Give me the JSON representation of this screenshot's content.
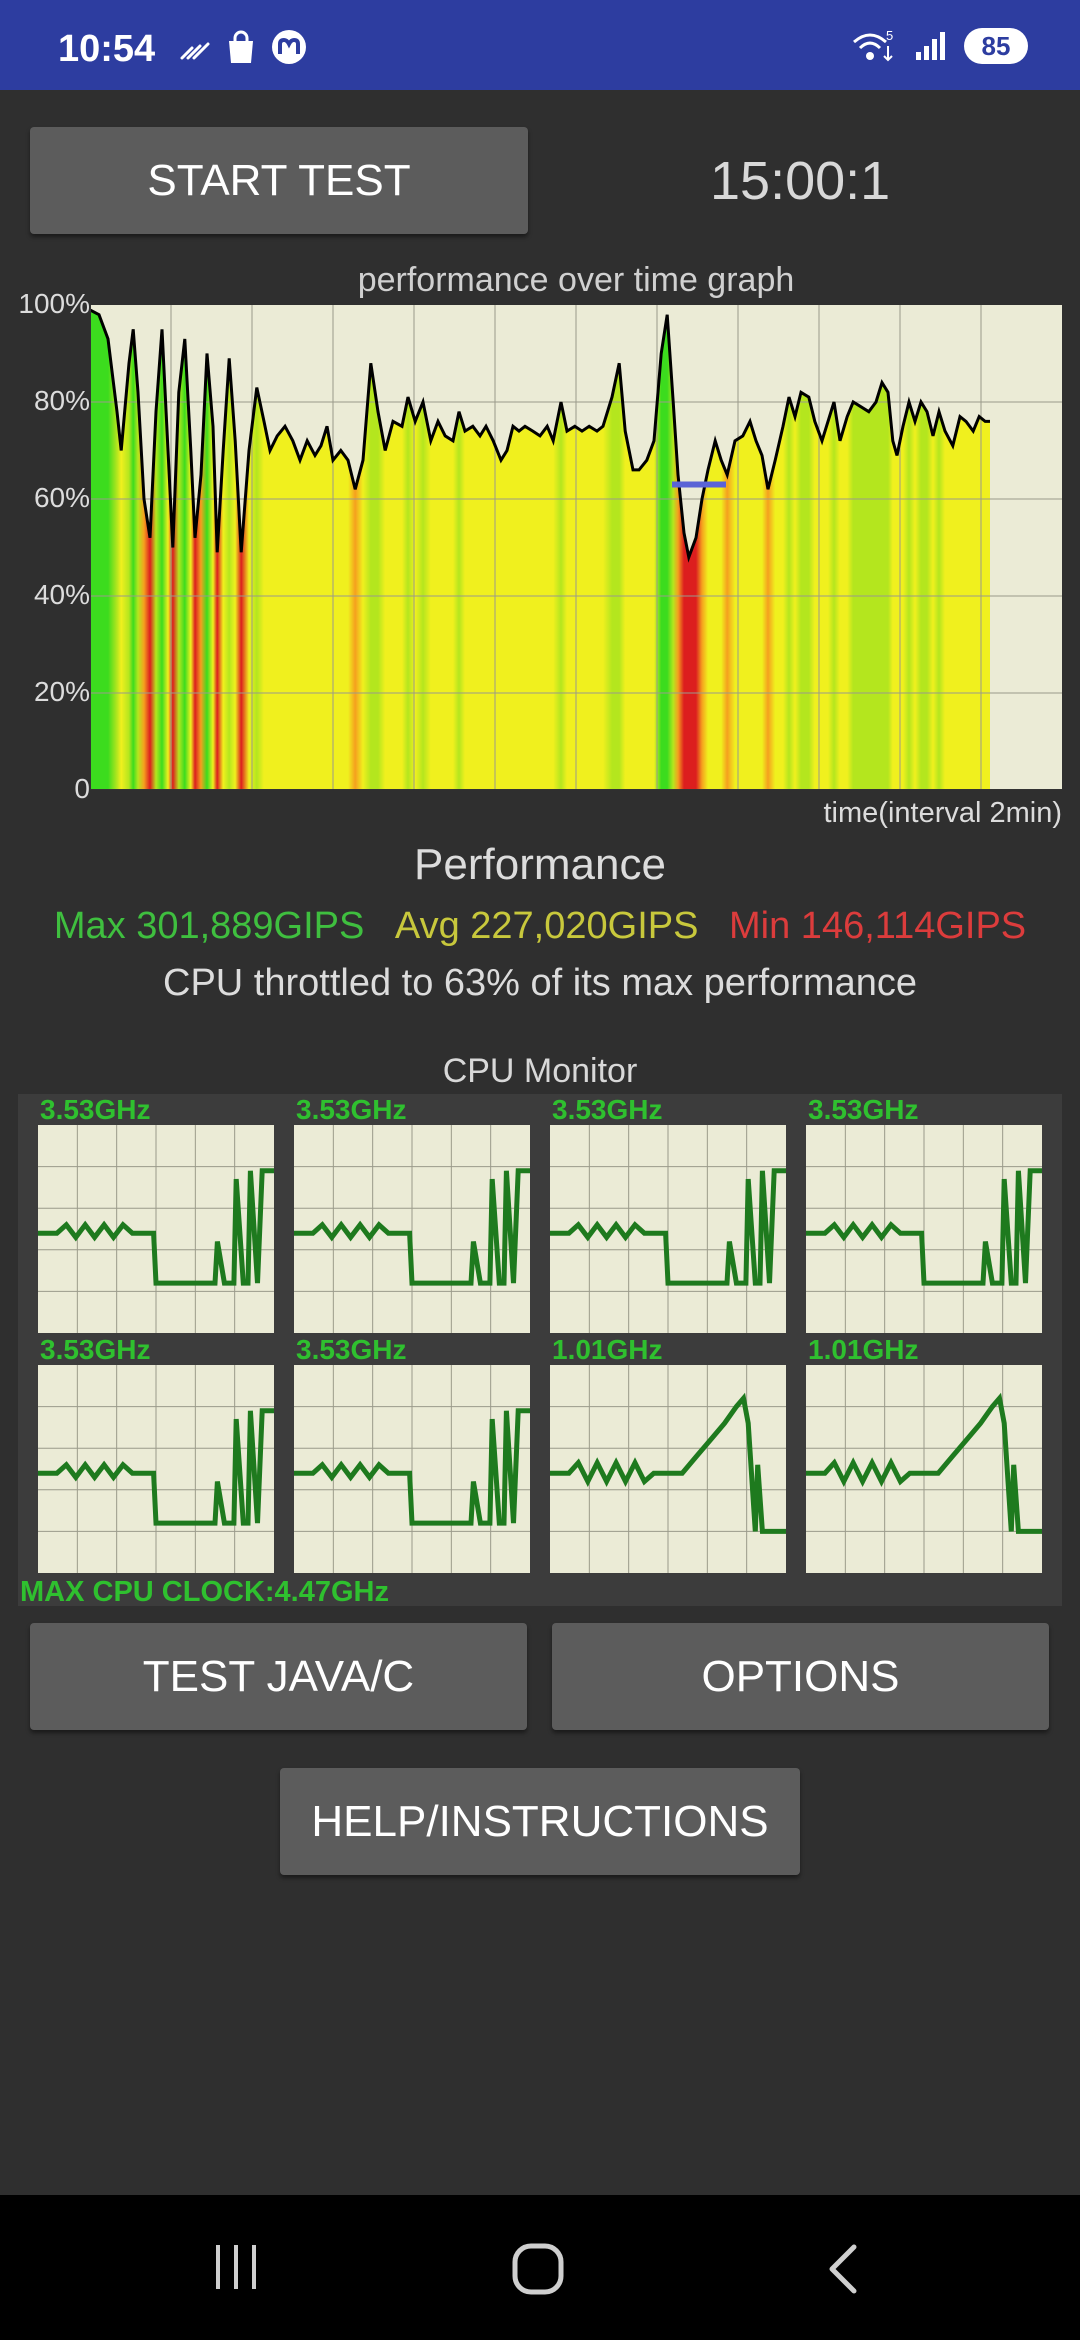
{
  "status_bar": {
    "time": "10:54",
    "icons_left": [
      "wifi-calling-icon",
      "shopping-bag-icon",
      "messenger-app-icon"
    ],
    "icons_right": [
      "wifi-5-icon",
      "signal-icon"
    ],
    "battery": "85"
  },
  "controls": {
    "start_test_label": "START TEST",
    "timer": "15:00:1"
  },
  "chart_data": {
    "type": "area",
    "title": "performance over time graph",
    "xlabel": "time(interval 2min)",
    "ylabel": "",
    "y_ticks": [
      "100%",
      "80%",
      "60%",
      "40%",
      "20%",
      "0"
    ],
    "ylim": [
      0,
      100
    ],
    "x_range": [
      0,
      15
    ],
    "grid": true,
    "series": [
      {
        "values": [
          [
            0.0,
            99
          ],
          [
            0.15,
            98
          ],
          [
            0.3,
            93
          ],
          [
            0.45,
            78
          ],
          [
            0.52,
            70
          ],
          [
            0.65,
            88
          ],
          [
            0.72,
            95
          ],
          [
            0.8,
            82
          ],
          [
            0.9,
            60
          ],
          [
            1.0,
            52
          ],
          [
            1.1,
            78
          ],
          [
            1.2,
            95
          ],
          [
            1.3,
            70
          ],
          [
            1.38,
            50
          ],
          [
            1.48,
            82
          ],
          [
            1.58,
            93
          ],
          [
            1.68,
            70
          ],
          [
            1.75,
            52
          ],
          [
            1.85,
            65
          ],
          [
            1.95,
            90
          ],
          [
            2.05,
            75
          ],
          [
            2.12,
            49
          ],
          [
            2.22,
            70
          ],
          [
            2.32,
            89
          ],
          [
            2.42,
            72
          ],
          [
            2.52,
            49
          ],
          [
            2.65,
            70
          ],
          [
            2.78,
            83
          ],
          [
            2.9,
            76
          ],
          [
            3.0,
            70
          ],
          [
            3.12,
            73
          ],
          [
            3.25,
            75
          ],
          [
            3.38,
            72
          ],
          [
            3.5,
            68
          ],
          [
            3.62,
            72
          ],
          [
            3.75,
            69
          ],
          [
            3.85,
            71
          ],
          [
            3.95,
            75
          ],
          [
            4.05,
            68
          ],
          [
            4.18,
            70
          ],
          [
            4.3,
            68
          ],
          [
            4.42,
            62
          ],
          [
            4.55,
            68
          ],
          [
            4.68,
            88
          ],
          [
            4.8,
            78
          ],
          [
            4.92,
            70
          ],
          [
            5.05,
            76
          ],
          [
            5.2,
            75
          ],
          [
            5.3,
            81
          ],
          [
            5.42,
            76
          ],
          [
            5.55,
            80
          ],
          [
            5.68,
            72
          ],
          [
            5.8,
            76
          ],
          [
            5.92,
            73
          ],
          [
            6.05,
            72
          ],
          [
            6.15,
            78
          ],
          [
            6.25,
            74
          ],
          [
            6.38,
            75
          ],
          [
            6.5,
            73
          ],
          [
            6.6,
            75
          ],
          [
            6.72,
            72
          ],
          [
            6.85,
            68
          ],
          [
            6.95,
            70
          ],
          [
            7.05,
            75
          ],
          [
            7.15,
            74
          ],
          [
            7.25,
            75
          ],
          [
            7.38,
            74
          ],
          [
            7.5,
            73
          ],
          [
            7.62,
            75
          ],
          [
            7.72,
            72
          ],
          [
            7.85,
            80
          ],
          [
            7.95,
            74
          ],
          [
            8.08,
            75
          ],
          [
            8.2,
            74
          ],
          [
            8.32,
            75
          ],
          [
            8.45,
            74
          ],
          [
            8.55,
            75
          ],
          [
            8.7,
            81
          ],
          [
            8.82,
            88
          ],
          [
            8.92,
            74
          ],
          [
            9.05,
            66
          ],
          [
            9.15,
            66
          ],
          [
            9.28,
            68
          ],
          [
            9.4,
            72
          ],
          [
            9.52,
            90
          ],
          [
            9.62,
            98
          ],
          [
            9.72,
            80
          ],
          [
            9.8,
            65
          ],
          [
            9.9,
            53
          ],
          [
            9.98,
            48
          ],
          [
            10.1,
            52
          ],
          [
            10.2,
            60
          ],
          [
            10.3,
            66
          ],
          [
            10.42,
            72
          ],
          [
            10.52,
            68
          ],
          [
            10.62,
            65
          ],
          [
            10.75,
            72
          ],
          [
            10.88,
            73
          ],
          [
            11.0,
            76
          ],
          [
            11.1,
            72
          ],
          [
            11.2,
            69
          ],
          [
            11.3,
            62
          ],
          [
            11.42,
            68
          ],
          [
            11.55,
            75
          ],
          [
            11.65,
            81
          ],
          [
            11.75,
            77
          ],
          [
            11.85,
            82
          ],
          [
            11.98,
            81
          ],
          [
            12.08,
            76
          ],
          [
            12.2,
            72
          ],
          [
            12.3,
            76
          ],
          [
            12.4,
            80
          ],
          [
            12.5,
            72
          ],
          [
            12.62,
            77
          ],
          [
            12.72,
            80
          ],
          [
            12.85,
            79
          ],
          [
            12.98,
            78
          ],
          [
            13.1,
            80
          ],
          [
            13.2,
            84
          ],
          [
            13.3,
            82
          ],
          [
            13.38,
            72
          ],
          [
            13.45,
            69
          ],
          [
            13.55,
            75
          ],
          [
            13.65,
            80
          ],
          [
            13.75,
            76
          ],
          [
            13.85,
            80
          ],
          [
            13.95,
            78
          ],
          [
            14.05,
            73
          ],
          [
            14.15,
            78
          ],
          [
            14.25,
            74
          ],
          [
            14.38,
            71
          ],
          [
            14.5,
            77
          ],
          [
            14.6,
            76
          ],
          [
            14.72,
            74
          ],
          [
            14.82,
            77
          ],
          [
            14.92,
            76
          ],
          [
            15.0,
            76
          ]
        ]
      }
    ],
    "average_marker": {
      "x_start": 9.7,
      "x_end": 10.6,
      "y": 63,
      "color": "#5a63d6"
    },
    "colors": {
      "high": "#3cdc1e",
      "mid": "#f0f01e",
      "mid_low": "#f5a01e",
      "low": "#dc1e1e",
      "line": "#000000"
    }
  },
  "performance": {
    "heading": "Performance",
    "max": "Max 301,889GIPS",
    "avg": "Avg 227,020GIPS",
    "min": "Min 146,114GIPS",
    "throttle": "CPU throttled to 63% of its max performance",
    "colors": {
      "max": "#3fbf3f",
      "avg": "#c8c83c",
      "min": "#dc3c3c"
    }
  },
  "cpu_monitor": {
    "title": "CPU Monitor",
    "cores": [
      {
        "freq": "3.53GHz",
        "pattern": "big"
      },
      {
        "freq": "3.53GHz",
        "pattern": "big"
      },
      {
        "freq": "3.53GHz",
        "pattern": "big"
      },
      {
        "freq": "3.53GHz",
        "pattern": "big"
      },
      {
        "freq": "3.53GHz",
        "pattern": "big"
      },
      {
        "freq": "3.53GHz",
        "pattern": "big"
      },
      {
        "freq": "1.01GHz",
        "pattern": "little"
      },
      {
        "freq": "1.01GHz",
        "pattern": "little"
      }
    ],
    "max_clock": "MAX CPU CLOCK:4.47GHz",
    "line_color": "#1e7a1e"
  },
  "buttons": {
    "test_java_c": "TEST JAVA/C",
    "options": "OPTIONS",
    "help": "HELP/INSTRUCTIONS"
  },
  "nav": {
    "icons": [
      "recents-icon",
      "home-icon",
      "back-icon"
    ]
  }
}
